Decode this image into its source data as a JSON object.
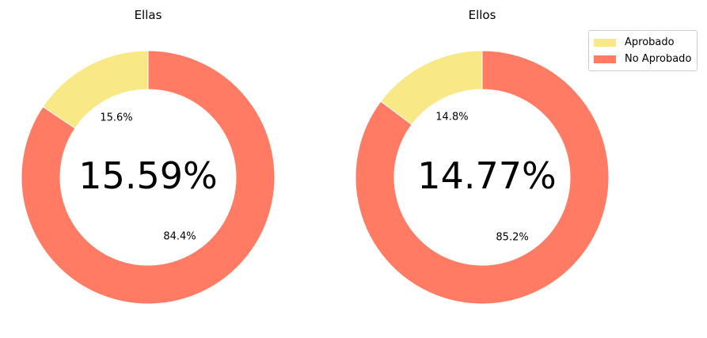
{
  "colors": {
    "aprobado": "#f9e886",
    "no_aprobado": "#ff7b63"
  },
  "legend": {
    "position": "top-right",
    "items": [
      {
        "label": "Aprobado",
        "color": "#f9e886"
      },
      {
        "label": "No Aprobado",
        "color": "#ff7b63"
      }
    ]
  },
  "chart_data": [
    {
      "type": "pie",
      "donut": true,
      "title": "Ellas",
      "center_label": "15.59%",
      "categories": [
        "Aprobado",
        "No Aprobado"
      ],
      "values": [
        15.59,
        84.41
      ],
      "slice_labels": [
        "15.6%",
        "84.4%"
      ],
      "start_angle_deg": 90,
      "direction": "counterclockwise"
    },
    {
      "type": "pie",
      "donut": true,
      "title": "Ellos",
      "center_label": "14.77%",
      "categories": [
        "Aprobado",
        "No Aprobado"
      ],
      "values": [
        14.77,
        85.23
      ],
      "slice_labels": [
        "14.8%",
        "85.2%"
      ],
      "start_angle_deg": 90,
      "direction": "counterclockwise"
    }
  ]
}
